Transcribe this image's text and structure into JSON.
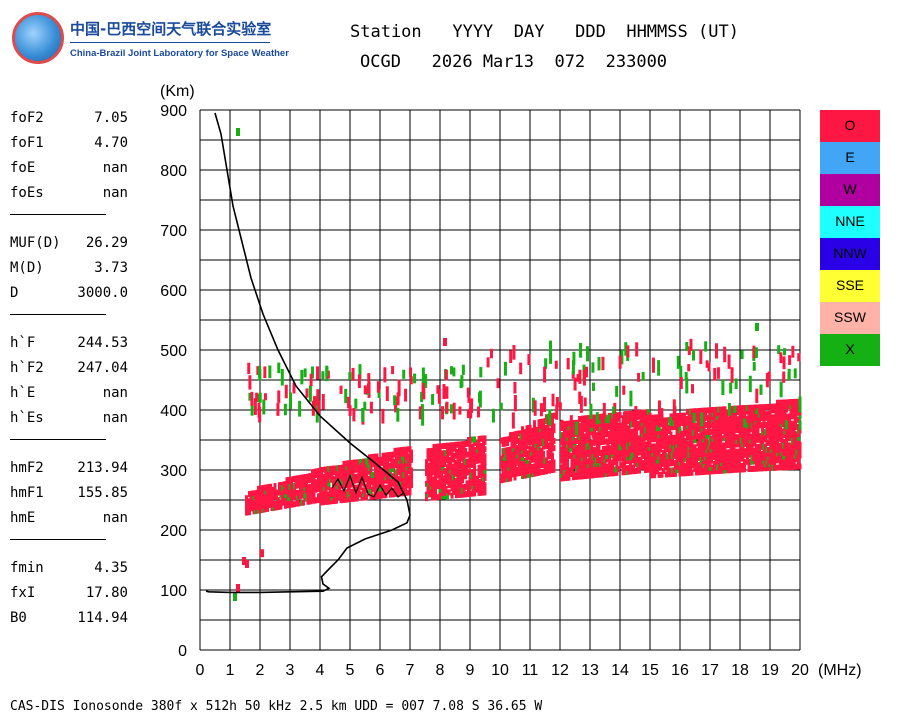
{
  "header": {
    "line1": "Station   YYYY  DAY   DDD  HHMMSS (UT)",
    "line2": "OCGD   2026 Mar13  072  233000"
  },
  "logo": {
    "cn": "中国-巴西空间天气联合实验室",
    "en": "China-Brazil Joint Laboratory for Space Weather"
  },
  "params": [
    {
      "k": "foF2",
      "v": "7.05"
    },
    {
      "k": "foF1",
      "v": "4.70"
    },
    {
      "k": "foE",
      "v": "nan"
    },
    {
      "k": "foEs",
      "v": "nan"
    },
    {
      "sep": true
    },
    {
      "k": "MUF(D)",
      "v": "26.29"
    },
    {
      "k": "M(D)",
      "v": "3.73"
    },
    {
      "k": "D",
      "v": "3000.0"
    },
    {
      "sep": true
    },
    {
      "k": "h`F",
      "v": "244.53"
    },
    {
      "k": "h`F2",
      "v": "247.04"
    },
    {
      "k": "h`E",
      "v": "nan"
    },
    {
      "k": "h`Es",
      "v": "nan"
    },
    {
      "sep": true
    },
    {
      "k": "hmF2",
      "v": "213.94"
    },
    {
      "k": "hmF1",
      "v": "155.85"
    },
    {
      "k": "hmE",
      "v": "nan"
    },
    {
      "sep": true
    },
    {
      "k": "fmin",
      "v": "4.35"
    },
    {
      "k": "fxI",
      "v": "17.80"
    },
    {
      "k": "B0",
      "v": "114.94"
    }
  ],
  "legend": [
    {
      "label": "O",
      "color": "#ff1744"
    },
    {
      "label": "E",
      "color": "#42a5f5"
    },
    {
      "label": "W",
      "color": "#b0009f"
    },
    {
      "label": "NNE",
      "color": "#1effff"
    },
    {
      "label": "NNW",
      "color": "#2a00e6"
    },
    {
      "label": "SSE",
      "color": "#ffff33"
    },
    {
      "label": "SSW",
      "color": "#ffb3a8"
    },
    {
      "label": "X",
      "color": "#14b014"
    }
  ],
  "footer": "CAS-DIS Ionosonde 380f x 512h 50 kHz 2.5 km UDD = 007 7.08 S 36.65 W",
  "chart_data": {
    "type": "scatter",
    "xlabel": "(MHz)",
    "ylabel": "(Km)",
    "xlim": [
      0,
      20
    ],
    "ylim": [
      0,
      900
    ],
    "xticks": [
      "0",
      "1",
      "2",
      "3",
      "4",
      "5",
      "6",
      "7",
      "8",
      "9",
      "10",
      "11",
      "12",
      "13",
      "14",
      "15",
      "16",
      "17",
      "18",
      "19",
      "20"
    ],
    "yticks": [
      "0",
      "100",
      "200",
      "300",
      "400",
      "500",
      "600",
      "700",
      "800",
      "900"
    ],
    "grid": true,
    "o_trace_regions": [
      {
        "x": [
          1.5,
          4.0
        ],
        "y_low": [
          228,
          250
        ],
        "y_high": [
          262,
          300
        ]
      },
      {
        "x": [
          4.0,
          7.0
        ],
        "y_low": [
          245,
          262
        ],
        "y_high": [
          300,
          338
        ]
      },
      {
        "x": [
          7.5,
          9.5
        ],
        "y_low": [
          252,
          262
        ],
        "y_high": [
          335,
          355
        ]
      },
      {
        "x": [
          10.0,
          11.8
        ],
        "y_low": [
          282,
          300
        ],
        "y_high": [
          350,
          395
        ]
      },
      {
        "x": [
          12.0,
          15.0
        ],
        "y_low": [
          285,
          300
        ],
        "y_high": [
          380,
          400
        ]
      },
      {
        "x": [
          15.0,
          18.0
        ],
        "y_low": [
          290,
          300
        ],
        "y_high": [
          390,
          405
        ]
      },
      {
        "x": [
          18.0,
          20.0
        ],
        "y_low": [
          300,
          305
        ],
        "y_high": [
          405,
          415
        ]
      }
    ],
    "upper_echo_region": {
      "x": [
        1.5,
        20.0
      ],
      "y": [
        340,
        520
      ]
    },
    "profile_curve": {
      "name": "",
      "points": [
        [
          0.5,
          895
        ],
        [
          0.7,
          860
        ],
        [
          0.9,
          800
        ],
        [
          1.1,
          740
        ],
        [
          1.4,
          680
        ],
        [
          1.7,
          620
        ],
        [
          2.1,
          560
        ],
        [
          2.6,
          500
        ],
        [
          3.2,
          440
        ],
        [
          4.0,
          390
        ],
        [
          5.0,
          345
        ],
        [
          6.0,
          305
        ],
        [
          6.6,
          280
        ],
        [
          6.9,
          250
        ],
        [
          7.0,
          225
        ],
        [
          6.9,
          212
        ],
        [
          6.4,
          200
        ],
        [
          5.5,
          185
        ],
        [
          4.9,
          170
        ],
        [
          4.6,
          150
        ],
        [
          4.3,
          135
        ],
        [
          4.05,
          122
        ],
        [
          4.1,
          110
        ],
        [
          4.3,
          103
        ],
        [
          4.1,
          98
        ],
        [
          3.0,
          97
        ],
        [
          2.0,
          96
        ],
        [
          1.0,
          96
        ],
        [
          0.3,
          97
        ],
        [
          0.2,
          98
        ]
      ]
    },
    "wavy_segment": {
      "points": [
        [
          4.4,
          270
        ],
        [
          4.6,
          285
        ],
        [
          4.8,
          265
        ],
        [
          5.0,
          290
        ],
        [
          5.2,
          262
        ],
        [
          5.4,
          288
        ],
        [
          5.6,
          260
        ],
        [
          5.8,
          255
        ],
        [
          6.0,
          275
        ],
        [
          6.2,
          258
        ],
        [
          6.4,
          270
        ],
        [
          6.6,
          255
        ],
        [
          6.8,
          262
        ]
      ]
    }
  }
}
